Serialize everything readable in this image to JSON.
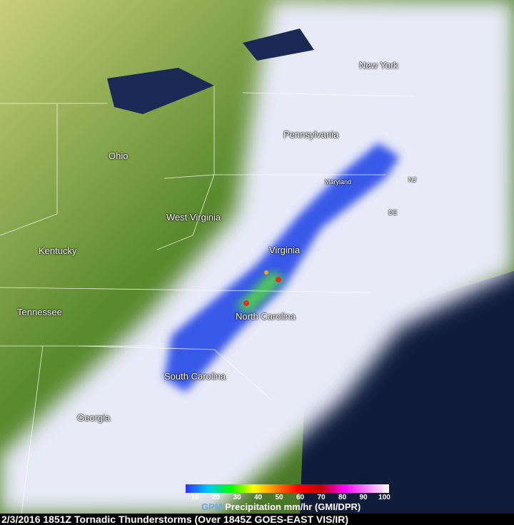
{
  "map": {
    "states": [
      {
        "name": "New York"
      },
      {
        "name": "Pennsylvania"
      },
      {
        "name": "Ohio"
      },
      {
        "name": "Maryland"
      },
      {
        "name": "NJ"
      },
      {
        "name": "DE"
      },
      {
        "name": "West Virginia"
      },
      {
        "name": "Kentucky"
      },
      {
        "name": "Virginia"
      },
      {
        "name": "Tennessee"
      },
      {
        "name": "North Carolina"
      },
      {
        "name": "South Carolina"
      },
      {
        "name": "Georgia"
      }
    ]
  },
  "legend": {
    "gpm": "GPM",
    "title": "Precipitation mm/hr (GMI/DPR)",
    "ticks": [
      "10",
      "20",
      "30",
      "40",
      "50",
      "60",
      "70",
      "80",
      "90",
      "100"
    ],
    "colors": [
      "#3030ff",
      "#00c8ff",
      "#00ff00",
      "#ffff00",
      "#ff8000",
      "#ff0000",
      "#c00000",
      "#ff00ff",
      "#ff80ff",
      "#ffffff"
    ]
  },
  "caption": "2/3/2016 1851Z  Tornadic Thunderstorms (Over 1845Z GOES-EAST VIS/IR)"
}
